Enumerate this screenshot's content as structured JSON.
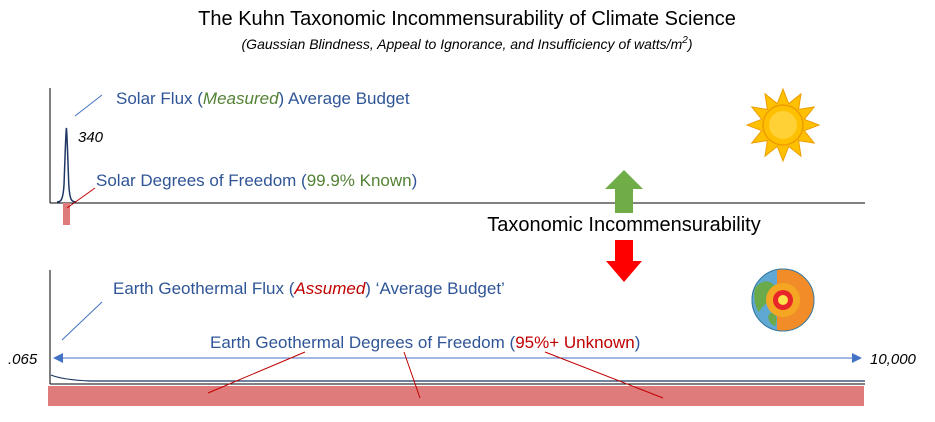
{
  "title": "The Kuhn Taxonomic Incommensurability of Climate Science",
  "subtitle": {
    "text": "(Gaussian Blindness, Appeal to Ignorance, and Insufficiency of watts/m",
    "superscript": "2",
    "closing": ")"
  },
  "solar": {
    "flux_label": {
      "prefix": "Solar Flux (",
      "highlight": "Measured",
      "suffix": ") Average Budget",
      "highlight_color": "#548235"
    },
    "peak_value": "340",
    "dof_label": {
      "prefix": "Solar Degrees of Freedom (",
      "highlight": "99.9% Known",
      "suffix": ")",
      "highlight_color": "#548235"
    }
  },
  "center_label": "Taxonomic Incommensurability",
  "geo": {
    "flux_label": {
      "prefix": "Earth Geothermal Flux (",
      "highlight": "Assumed",
      "suffix": ") ‘Average Budget’",
      "highlight_color": "#C00000"
    },
    "dof_label": {
      "prefix": "Earth Geothermal Degrees of Freedom (",
      "highlight": "95%+ Unknown",
      "suffix": ")",
      "highlight_color": "#C00000"
    },
    "range_min": ".065",
    "range_max": "10,000"
  },
  "icons": {
    "sun": "sun-icon",
    "earth": "earth-cross-section-icon",
    "up_arrow": "up-arrow-icon",
    "down_arrow": "down-arrow-icon"
  },
  "colors": {
    "label_blue": "#2F5597",
    "green": "#70AD47",
    "red": "#FF0000",
    "bar_pink": "#E07B7B",
    "range_arrow": "#4472C4"
  }
}
